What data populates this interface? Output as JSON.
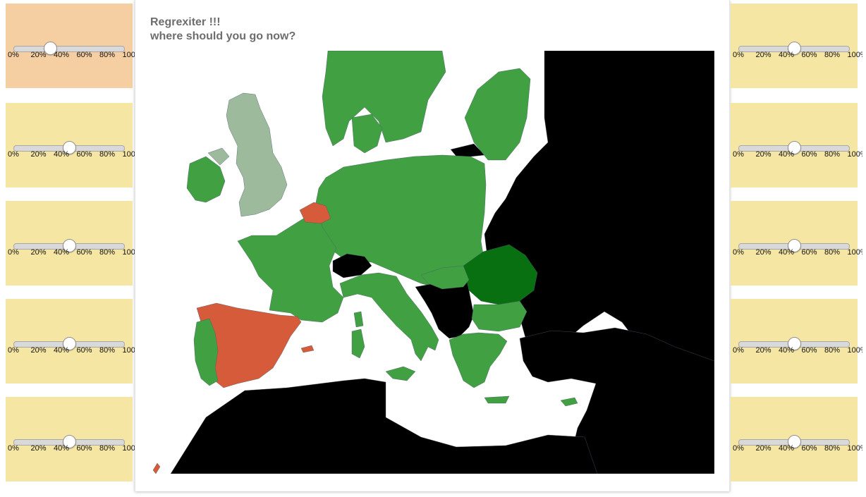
{
  "app": {
    "title_line1": "Regrexiter !!!",
    "title_line2": "where should you go now?"
  },
  "colors": {
    "left_active_panel": "#f5cea1",
    "panel": "#f6e6a4",
    "map_sea": "#ffffff",
    "map_recommended": "#41a042",
    "map_best": "#087011",
    "map_neutral": "#9dbb9c",
    "map_discouraged": "#d55b3b",
    "map_unavailable": "#000000"
  },
  "scale_labels": [
    "0%",
    "20%",
    "40%",
    "60%",
    "80%",
    "100%"
  ],
  "left_sliders": [
    {
      "name": "left-slider-1",
      "value": 0.33,
      "active": true
    },
    {
      "name": "left-slider-2",
      "value": 0.5,
      "active": false
    },
    {
      "name": "left-slider-3",
      "value": 0.5,
      "active": false
    },
    {
      "name": "left-slider-4",
      "value": 0.5,
      "active": false
    },
    {
      "name": "left-slider-5",
      "value": 0.5,
      "active": false
    }
  ],
  "right_sliders": [
    {
      "name": "right-slider-1",
      "value": 0.5
    },
    {
      "name": "right-slider-2",
      "value": 0.5
    },
    {
      "name": "right-slider-3",
      "value": 0.5
    },
    {
      "name": "right-slider-4",
      "value": 0.5
    },
    {
      "name": "right-slider-5",
      "value": 0.5
    }
  ],
  "map": {
    "regions": [
      {
        "name": "uk",
        "color": "map_neutral"
      },
      {
        "name": "ireland",
        "color": "map_recommended"
      },
      {
        "name": "france",
        "color": "map_recommended"
      },
      {
        "name": "belgium",
        "color": "map_discouraged"
      },
      {
        "name": "spain",
        "color": "map_discouraged"
      },
      {
        "name": "portugal",
        "color": "map_recommended"
      },
      {
        "name": "switzerland",
        "color": "map_unavailable"
      },
      {
        "name": "italy",
        "color": "map_recommended"
      },
      {
        "name": "germany",
        "color": "map_recommended"
      },
      {
        "name": "scandinavia",
        "color": "map_recommended"
      },
      {
        "name": "romania",
        "color": "map_best"
      },
      {
        "name": "bulgaria",
        "color": "map_recommended"
      },
      {
        "name": "greece",
        "color": "map_recommended"
      },
      {
        "name": "balkans",
        "color": "map_unavailable"
      },
      {
        "name": "eastern-europe",
        "color": "map_unavailable"
      },
      {
        "name": "north-africa",
        "color": "map_unavailable"
      }
    ]
  }
}
